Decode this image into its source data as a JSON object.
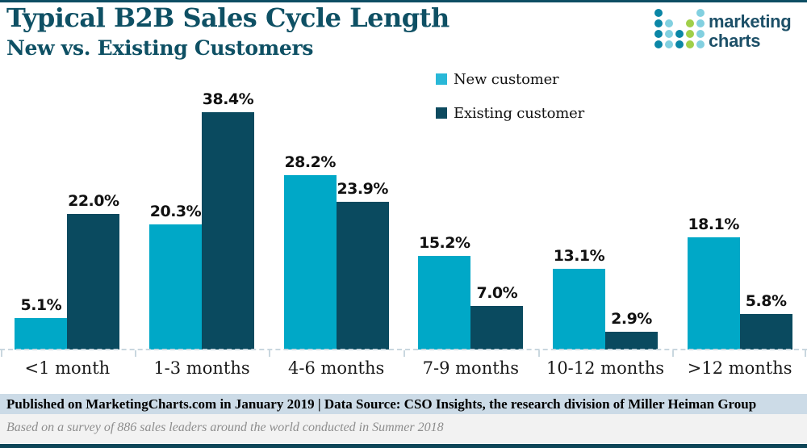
{
  "header": {
    "title": "Typical B2B Sales Cycle Length",
    "subtitle": "New vs. Existing Customers"
  },
  "logo": {
    "line1": "marketing",
    "line2": "charts",
    "dot_colors": {
      "t": "#0a86a6",
      "l": "#82d0e0",
      "g": "#a0cf4a"
    },
    "dots": [
      [
        "t",
        "",
        "",
        "",
        "l"
      ],
      [
        "t",
        "l",
        "",
        "g",
        "l"
      ],
      [
        "t",
        "l",
        "t",
        "g",
        "l"
      ],
      [
        "t",
        "l",
        "t",
        "g",
        "l"
      ]
    ]
  },
  "legend": {
    "items": [
      {
        "label": "New customer",
        "color": "#29b8d8"
      },
      {
        "label": "Existing customer",
        "color": "#0c4a5f"
      }
    ]
  },
  "chart_data": {
    "type": "bar",
    "title": "Typical B2B Sales Cycle Length",
    "subtitle": "New vs. Existing Customers",
    "categories": [
      "<1 month",
      "1-3 months",
      "4-6 months",
      "7-9 months",
      "10-12 months",
      ">12 months"
    ],
    "series": [
      {
        "name": "New customer",
        "color": "#00a8c7",
        "values": [
          5.1,
          20.3,
          28.2,
          15.2,
          13.1,
          18.1
        ]
      },
      {
        "name": "Existing customer",
        "color": "#0a4a5f",
        "values": [
          22.0,
          38.4,
          23.9,
          7.0,
          2.9,
          5.8
        ]
      }
    ],
    "value_suffix": "%",
    "value_label_decimals": 1,
    "ylim": [
      0,
      38.4
    ],
    "grid": false,
    "legend_position": "top-right-of-plot",
    "baseline_style": "dashed"
  },
  "footer": {
    "published_line": "Published on MarketingCharts.com in January 2019 | Data Source: CSO Insights, the research division of Miller Heiman Group",
    "note_line": "Based on a survey of 886 sales leaders around the world conducted in Summer 2018"
  },
  "colors": {
    "accent_dark_teal": "#0d4d63",
    "title_text": "#0e5064",
    "footer_band": "#ccdbe7",
    "note_band": "#f2f2f2",
    "baseline_dash": "#c9d7df"
  }
}
